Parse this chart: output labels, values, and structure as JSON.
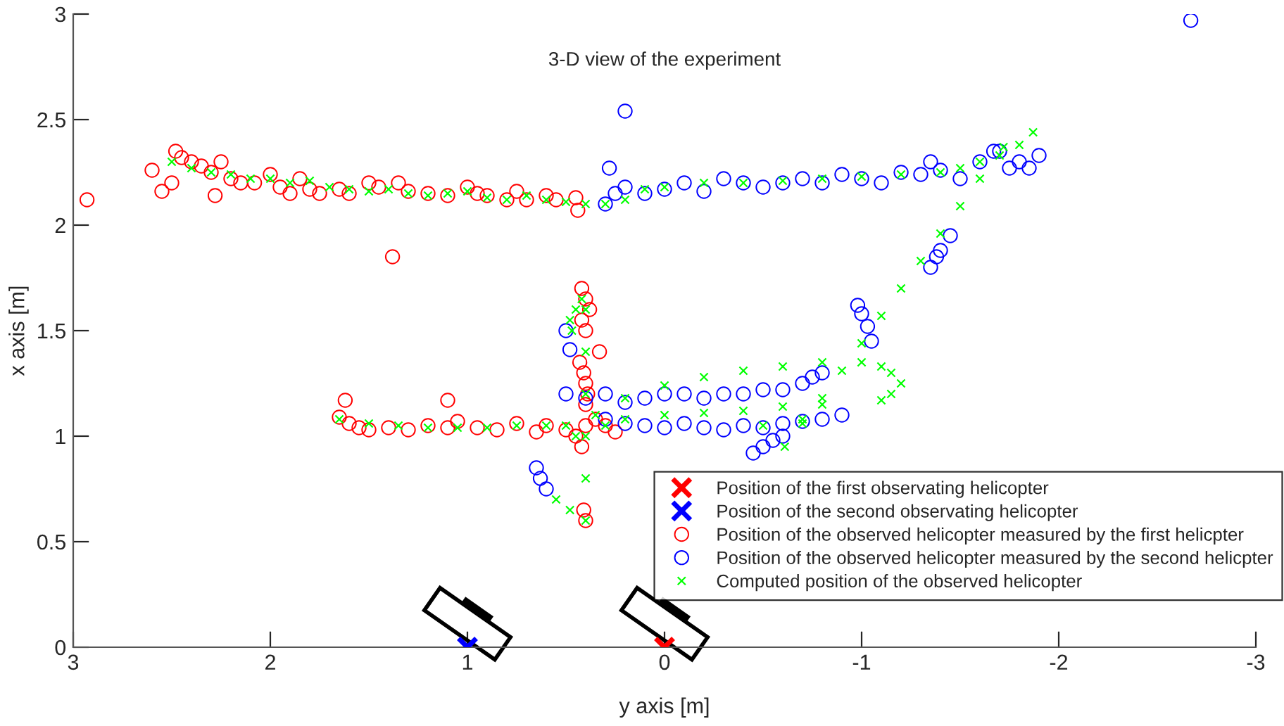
{
  "chart_data": {
    "type": "scatter",
    "title": "3-D view of the experiment",
    "xlabel": "y axis [m]",
    "ylabel": "x axis [m]",
    "xlim": [
      3,
      -3
    ],
    "ylim": [
      0,
      3
    ],
    "xticks": [
      3,
      2,
      1,
      0,
      -1,
      -2,
      -3
    ],
    "yticks": [
      0,
      0.5,
      1,
      1.5,
      2,
      2.5,
      3
    ],
    "grid": false,
    "legend": "bottom right",
    "series": [
      {
        "name": "Position of the first observating helicopter",
        "color": "#ff0000",
        "marker": "cross",
        "x": [
          0
        ],
        "values": [
          0
        ]
      },
      {
        "name": "Position of the second observating helicopter",
        "color": "#0000ff",
        "marker": "cross",
        "x": [
          1
        ],
        "values": [
          0
        ]
      },
      {
        "name": "Position of the observed helicopter measured by the first helicpter",
        "color": "#ff0000",
        "marker": "circle",
        "x": [
          2.93,
          2.6,
          2.55,
          2.5,
          2.48,
          2.45,
          2.4,
          2.35,
          2.3,
          2.28,
          2.25,
          2.2,
          2.15,
          2.08,
          2.0,
          1.95,
          1.9,
          1.85,
          1.8,
          1.75,
          1.65,
          1.6,
          1.5,
          1.45,
          1.35,
          1.3,
          1.2,
          1.1,
          1.0,
          0.95,
          0.9,
          0.8,
          0.75,
          0.7,
          0.6,
          0.55,
          0.45,
          0.44,
          1.38,
          1.65,
          1.6,
          1.55,
          1.5,
          1.4,
          1.3,
          1.2,
          1.1,
          1.05,
          0.95,
          0.85,
          0.75,
          0.65,
          0.6,
          0.5,
          0.45,
          0.42,
          0.4,
          0.35,
          0.3,
          0.25,
          1.62,
          1.1,
          0.33,
          0.42,
          0.4,
          0.38,
          0.42,
          0.4,
          0.43,
          0.41,
          0.4,
          0.39,
          0.4,
          0.41,
          0.4
        ],
        "values": [
          2.12,
          2.26,
          2.16,
          2.2,
          2.35,
          2.32,
          2.3,
          2.28,
          2.25,
          2.14,
          2.3,
          2.22,
          2.2,
          2.2,
          2.24,
          2.18,
          2.15,
          2.22,
          2.17,
          2.15,
          2.17,
          2.15,
          2.2,
          2.18,
          2.2,
          2.16,
          2.15,
          2.14,
          2.18,
          2.15,
          2.14,
          2.12,
          2.16,
          2.12,
          2.14,
          2.12,
          2.13,
          2.07,
          1.85,
          1.09,
          1.06,
          1.04,
          1.03,
          1.04,
          1.03,
          1.05,
          1.04,
          1.07,
          1.04,
          1.03,
          1.06,
          1.02,
          1.05,
          1.03,
          1.0,
          0.95,
          1.05,
          1.08,
          1.05,
          1.02,
          1.17,
          1.17,
          1.4,
          1.7,
          1.65,
          1.6,
          1.55,
          1.5,
          1.35,
          1.3,
          1.25,
          1.2,
          1.15,
          0.65,
          0.6
        ]
      },
      {
        "name": "Position of the observed helicopter measured by the second helicpter",
        "color": "#0000ff",
        "marker": "circle",
        "x": [
          0.3,
          0.25,
          0.2,
          0.1,
          0.0,
          -0.1,
          -0.2,
          -0.3,
          -0.4,
          -0.5,
          -0.6,
          -0.7,
          -0.8,
          -0.9,
          -1.0,
          -1.1,
          -1.2,
          -1.3,
          -1.4,
          -1.5,
          -1.6,
          -1.7,
          -1.8,
          -1.85,
          -1.9,
          0.2,
          0.28,
          -2.67,
          -1.35,
          -1.67,
          -1.75,
          -1.35,
          -1.4,
          -1.45,
          -1.38,
          -1.05,
          -1.03,
          -1.0,
          -0.98,
          0.5,
          0.4,
          0.3,
          0.2,
          0.1,
          0.0,
          -0.1,
          -0.2,
          -0.3,
          -0.4,
          -0.5,
          -0.6,
          -0.7,
          -0.75,
          -0.8,
          0.3,
          0.2,
          0.1,
          0.0,
          -0.1,
          -0.2,
          -0.3,
          -0.4,
          -0.5,
          -0.6,
          -0.7,
          -0.8,
          -0.9,
          -0.45,
          -0.5,
          -0.55,
          -0.6,
          0.65,
          0.63,
          0.6,
          0.48,
          0.5
        ],
        "values": [
          2.1,
          2.15,
          2.18,
          2.15,
          2.17,
          2.2,
          2.16,
          2.22,
          2.2,
          2.18,
          2.2,
          2.22,
          2.2,
          2.24,
          2.22,
          2.2,
          2.25,
          2.24,
          2.26,
          2.22,
          2.3,
          2.35,
          2.3,
          2.27,
          2.33,
          2.54,
          2.27,
          2.97,
          2.3,
          2.35,
          2.27,
          1.8,
          1.88,
          1.95,
          1.85,
          1.45,
          1.52,
          1.58,
          1.62,
          1.2,
          1.18,
          1.2,
          1.16,
          1.18,
          1.2,
          1.2,
          1.18,
          1.2,
          1.2,
          1.22,
          1.22,
          1.25,
          1.28,
          1.3,
          1.08,
          1.06,
          1.05,
          1.04,
          1.06,
          1.04,
          1.03,
          1.05,
          1.04,
          1.06,
          1.07,
          1.08,
          1.1,
          0.92,
          0.95,
          0.98,
          1.0,
          0.85,
          0.8,
          0.75,
          1.41,
          1.5
        ]
      },
      {
        "name": "Computed position of the observed helicopter",
        "color": "#00ff00",
        "marker": "x",
        "x": [
          2.5,
          2.4,
          2.3,
          2.2,
          2.1,
          2.0,
          1.9,
          1.8,
          1.7,
          1.6,
          1.5,
          1.4,
          1.3,
          1.2,
          1.1,
          1.0,
          0.9,
          0.8,
          0.7,
          0.6,
          0.5,
          0.4,
          0.3,
          0.2,
          0.1,
          0.0,
          -0.2,
          -0.4,
          -0.6,
          -0.8,
          -1.0,
          -1.2,
          -1.4,
          -1.5,
          -1.6,
          -1.7,
          -1.8,
          -1.87,
          -1.72,
          -1.6,
          -1.5,
          -1.4,
          -1.3,
          -1.2,
          -1.1,
          -1.0,
          -0.9,
          -0.8,
          -0.7,
          -0.61,
          0.35,
          0.2,
          0.0,
          -0.2,
          -0.4,
          -0.6,
          -0.8,
          -1.0,
          -1.1,
          -1.15,
          -1.2,
          -1.15,
          -1.1,
          -0.8,
          -0.6,
          -0.4,
          -0.2,
          0.0,
          0.2,
          0.3,
          -0.5,
          -0.7,
          1.65,
          1.5,
          1.35,
          1.2,
          1.05,
          0.9,
          0.75,
          0.6,
          0.5,
          0.45,
          0.4,
          0.4,
          0.4,
          0.4,
          0.4,
          0.4,
          0.42,
          0.45,
          0.47,
          0.48,
          0.55,
          0.48
        ],
        "values": [
          2.3,
          2.27,
          2.25,
          2.24,
          2.22,
          2.22,
          2.2,
          2.21,
          2.18,
          2.17,
          2.16,
          2.17,
          2.15,
          2.14,
          2.15,
          2.16,
          2.13,
          2.12,
          2.14,
          2.12,
          2.11,
          2.1,
          2.1,
          2.12,
          2.17,
          2.18,
          2.2,
          2.2,
          2.21,
          2.22,
          2.23,
          2.24,
          2.25,
          2.27,
          2.3,
          2.33,
          2.38,
          2.44,
          2.37,
          2.22,
          2.09,
          1.96,
          1.83,
          1.7,
          1.57,
          1.44,
          1.31,
          1.18,
          1.06,
          0.95,
          1.1,
          1.18,
          1.24,
          1.28,
          1.31,
          1.33,
          1.35,
          1.35,
          1.33,
          1.3,
          1.25,
          1.2,
          1.17,
          1.15,
          1.14,
          1.12,
          1.11,
          1.1,
          1.08,
          1.05,
          1.05,
          1.08,
          1.08,
          1.06,
          1.05,
          1.04,
          1.04,
          1.04,
          1.05,
          1.05,
          1.05,
          1.0,
          0.6,
          0.8,
          1.0,
          1.2,
          1.4,
          1.6,
          1.65,
          1.6,
          1.5,
          1.55,
          0.7,
          0.65
        ]
      }
    ]
  }
}
